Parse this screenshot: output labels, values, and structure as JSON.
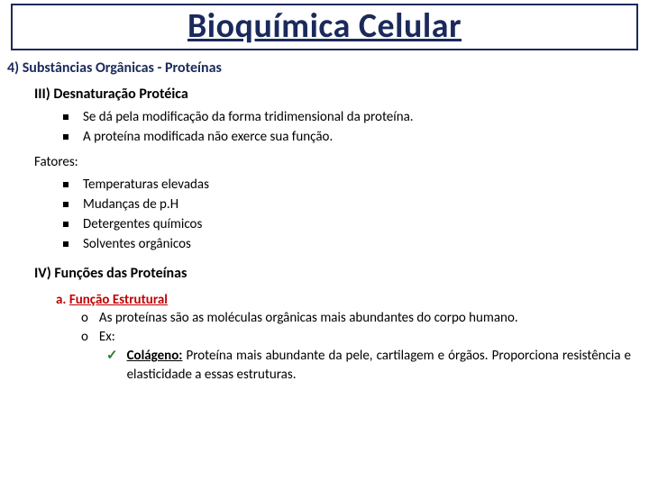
{
  "colors": {
    "title": "#1b2a5c",
    "accent_red": "#c00000",
    "check_green": "#2a7a2a",
    "bg": "#ffffff",
    "text": "#000000"
  },
  "title": "Bioquímica Celular",
  "section": "4) Substâncias Orgânicas - Proteínas",
  "sec3": {
    "heading": "III) Desnaturação Protéica",
    "bullets": [
      "Se dá pela modificação da forma tridimensional da proteína.",
      "A proteína modificada não exerce sua função."
    ],
    "fatores_label": "Fatores:",
    "fatores": [
      "Temperaturas elevadas",
      "Mudanças de p.H",
      "Detergentes químicos",
      "Solventes orgânicos"
    ]
  },
  "sec4": {
    "heading": "IV) Funções das Proteínas",
    "item_a": {
      "letter": "a.",
      "title": "Função Estrutural",
      "line1": "As proteínas são as moléculas orgânicas mais abundantes do corpo humano.",
      "line2_label": "Ex:",
      "example_term": "Colágeno:",
      "example_text": " Proteína mais abundante da pele, cartilagem e órgãos. Proporciona resistência e elasticidade a essas estruturas."
    }
  }
}
